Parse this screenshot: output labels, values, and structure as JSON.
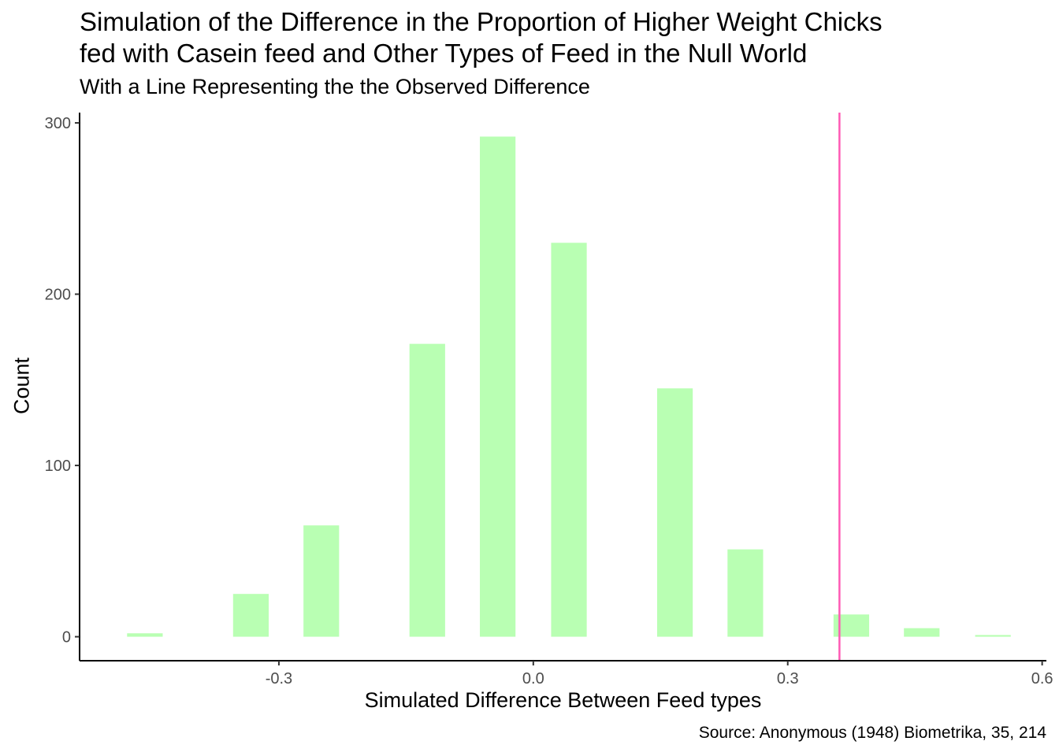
{
  "chart_data": {
    "type": "bar",
    "title": "Simulation of the Difference in the Proportion of Higher Weight Chicks\nfed with Casein feed and Other Types of Feed in the Null World",
    "subtitle": "With a Line Representing the the Observed Difference",
    "caption": "Source: Anonymous (1948) Biometrika, 35, 214",
    "xlabel": "Simulated Difference Between Feed types",
    "ylabel": "Count",
    "xlim": [
      -0.535,
      0.605
    ],
    "ylim": [
      -14,
      306
    ],
    "x_ticks": [
      -0.3,
      0.0,
      0.3,
      0.6
    ],
    "x_tick_labels": [
      "-0.3",
      "0.0",
      "0.3",
      "0.6"
    ],
    "y_ticks": [
      0,
      100,
      200,
      300
    ],
    "y_tick_labels": [
      "0",
      "100",
      "200",
      "300"
    ],
    "bin_width": 0.042,
    "bins": [
      {
        "x": -0.458,
        "count": 2
      },
      {
        "x": -0.333,
        "count": 25
      },
      {
        "x": -0.25,
        "count": 65
      },
      {
        "x": -0.125,
        "count": 171
      },
      {
        "x": -0.042,
        "count": 292
      },
      {
        "x": 0.042,
        "count": 230
      },
      {
        "x": 0.167,
        "count": 145
      },
      {
        "x": 0.25,
        "count": 51
      },
      {
        "x": 0.375,
        "count": 13
      },
      {
        "x": 0.458,
        "count": 5
      },
      {
        "x": 0.542,
        "count": 1
      }
    ],
    "observed_difference": 0.361,
    "colors": {
      "bar": "#b9ffb3",
      "observed_line": "#ff5ab4",
      "axis": "#000000",
      "tick_text": "#4d4d4d"
    },
    "grid": false,
    "legend": "none"
  }
}
